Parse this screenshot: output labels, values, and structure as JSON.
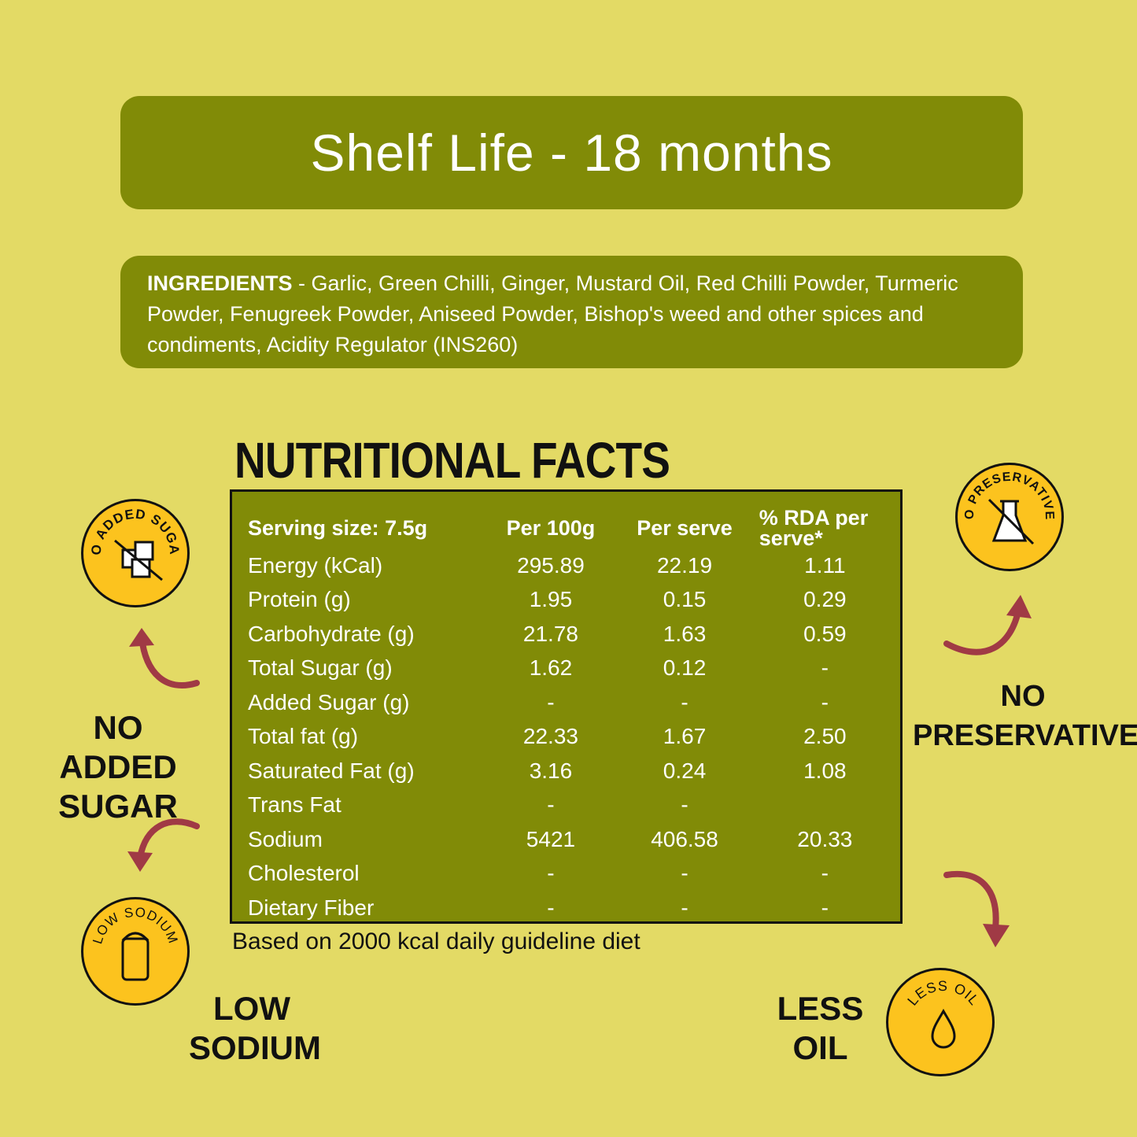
{
  "shelf_life": "Shelf Life - 18 months",
  "ingredients": {
    "label": "INGREDIENTS",
    "text": " - Garlic, Green Chilli, Ginger, Mustard Oil, Red Chilli Powder, Turmeric Powder, Fenugreek Powder, Aniseed Powder, Bishop's weed and other spices and condiments, Acidity Regulator (INS260)"
  },
  "nutrition": {
    "title": "NUTRITIONAL FACTS",
    "headers": [
      "Serving size: 7.5g",
      "Per 100g",
      "Per serve",
      "% RDA per serve*"
    ],
    "rows": [
      [
        "Energy (kCal)",
        "295.89",
        "22.19",
        "1.11"
      ],
      [
        "Protein (g)",
        "1.95",
        "0.15",
        "0.29"
      ],
      [
        "Carbohydrate (g)",
        "21.78",
        "1.63",
        "0.59"
      ],
      [
        "Total Sugar (g)",
        "1.62",
        "0.12",
        "-"
      ],
      [
        "Added Sugar (g)",
        "-",
        "-",
        "-"
      ],
      [
        "Total fat (g)",
        "22.33",
        "1.67",
        "2.50"
      ],
      [
        "Saturated Fat (g)",
        "3.16",
        "0.24",
        "1.08"
      ],
      [
        "Trans Fat",
        "-",
        "-",
        ""
      ],
      [
        "Sodium",
        "5421",
        "406.58",
        "20.33"
      ],
      [
        "Cholesterol",
        "-",
        "-",
        "-"
      ],
      [
        "Dietary Fiber",
        "-",
        "-",
        "-"
      ]
    ],
    "footnote": "Based on 2000 kcal daily guideline diet"
  },
  "badges": {
    "no_added_sugar": {
      "ring": "NO ADDED SUGAR",
      "label_1": "NO ADDED",
      "label_2": "SUGAR"
    },
    "no_preservatives": {
      "ring": "NO PRESERVATIVES",
      "label_1": "NO",
      "label_2": "PRESERVATIVES"
    },
    "low_sodium": {
      "ring": "LOW SODIUM",
      "label_1": "LOW",
      "label_2": "SODIUM"
    },
    "less_oil": {
      "ring": "LESS OIL",
      "label_1": "LESS",
      "label_2": "OIL"
    }
  },
  "colors": {
    "background": "#e3da65",
    "panel": "#818b07",
    "badge": "#fcc31e",
    "arrow": "#a03a45"
  }
}
